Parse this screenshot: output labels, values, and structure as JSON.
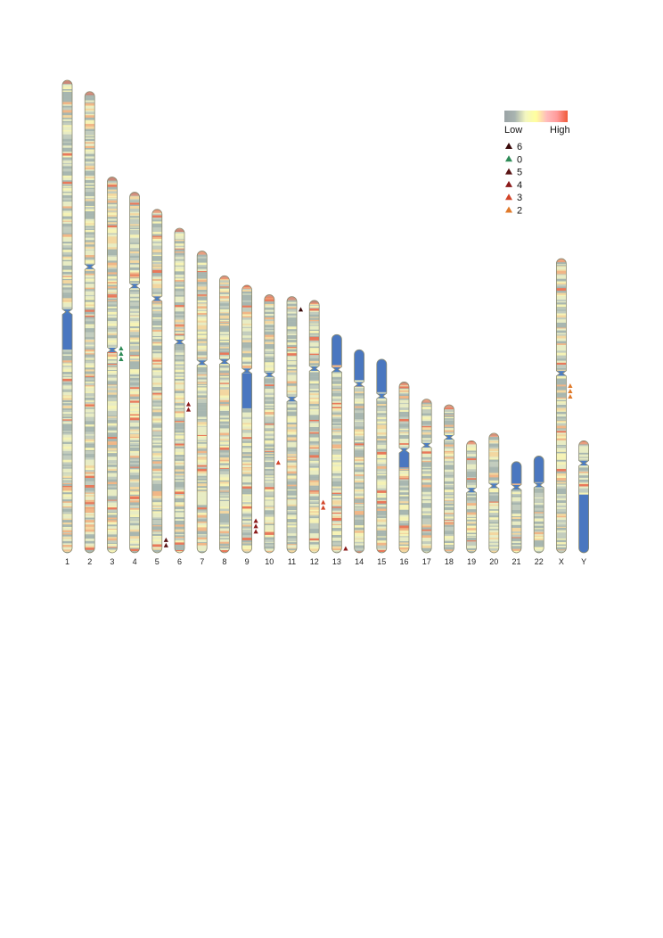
{
  "legend": {
    "low_label": "Low",
    "high_label": "High",
    "gradient_colors": [
      "#9aa3a6",
      "#a9b4b0",
      "#f3f6c0",
      "#ffff9e",
      "#ffbcbc",
      "#ff9a9a",
      "#f05a3a"
    ],
    "marker_entries": [
      {
        "label": "6",
        "color": "#3a0a0a"
      },
      {
        "label": "0",
        "color": "#2e8b57"
      },
      {
        "label": "5",
        "color": "#5a1414"
      },
      {
        "label": "4",
        "color": "#8b1a1a"
      },
      {
        "label": "3",
        "color": "#d2452a"
      },
      {
        "label": "2",
        "color": "#e07a2a"
      }
    ]
  },
  "colors": {
    "outline": "#8a8a70",
    "centromere": "#4a7cc4",
    "heterochromatin": "#4a77c0",
    "low": "#a9b8b2",
    "mid": "#f0f0c4",
    "high_warm": "#f4b080",
    "high_red": "#e8604a"
  },
  "chromosomes": [
    {
      "name": "1",
      "length": 249,
      "centromere": 0.49,
      "hetero": [
        0.49,
        0.57
      ]
    },
    {
      "name": "2",
      "length": 243,
      "centromere": 0.38
    },
    {
      "name": "3",
      "length": 198,
      "centromere": 0.46
    },
    {
      "name": "4",
      "length": 190,
      "centromere": 0.26
    },
    {
      "name": "5",
      "length": 181,
      "centromere": 0.26
    },
    {
      "name": "6",
      "length": 171,
      "centromere": 0.35
    },
    {
      "name": "7",
      "length": 159,
      "centromere": 0.37
    },
    {
      "name": "8",
      "length": 146,
      "centromere": 0.31
    },
    {
      "name": "9",
      "length": 141,
      "centromere": 0.32,
      "hetero": [
        0.33,
        0.46
      ]
    },
    {
      "name": "10",
      "length": 136,
      "centromere": 0.31
    },
    {
      "name": "11",
      "length": 135,
      "centromere": 0.4
    },
    {
      "name": "12",
      "length": 133,
      "centromere": 0.27
    },
    {
      "name": "13",
      "length": 115,
      "centromere": 0.16,
      "hetero": [
        0,
        0.14
      ]
    },
    {
      "name": "14",
      "length": 107,
      "centromere": 0.17,
      "hetero": [
        0,
        0.15
      ]
    },
    {
      "name": "15",
      "length": 102,
      "centromere": 0.19,
      "hetero": [
        0,
        0.17
      ]
    },
    {
      "name": "16",
      "length": 90,
      "centromere": 0.4,
      "hetero": [
        0.41,
        0.5
      ]
    },
    {
      "name": "17",
      "length": 81,
      "centromere": 0.3
    },
    {
      "name": "18",
      "length": 78,
      "centromere": 0.22
    },
    {
      "name": "19",
      "length": 59,
      "centromere": 0.44
    },
    {
      "name": "20",
      "length": 63,
      "centromere": 0.44
    },
    {
      "name": "21",
      "length": 48,
      "centromere": 0.28,
      "hetero": [
        0,
        0.24
      ]
    },
    {
      "name": "22",
      "length": 51,
      "centromere": 0.3,
      "hetero": [
        0,
        0.27
      ]
    },
    {
      "name": "X",
      "length": 155,
      "centromere": 0.39
    },
    {
      "name": "Y",
      "length": 59,
      "centromere": 0.2,
      "hetero": [
        0.48,
        1.0
      ]
    }
  ],
  "markers": [
    {
      "chrom": "3",
      "pos": 0.47,
      "count": 3,
      "legend": "0"
    },
    {
      "chrom": "5",
      "pos": 0.97,
      "count": 2,
      "legend": "5"
    },
    {
      "chrom": "6",
      "pos": 0.55,
      "count": 2,
      "legend": "4"
    },
    {
      "chrom": "9",
      "pos": 0.9,
      "count": 3,
      "legend": "4"
    },
    {
      "chrom": "10",
      "pos": 0.65,
      "count": 1,
      "legend": "3"
    },
    {
      "chrom": "11",
      "pos": 0.05,
      "count": 1,
      "legend": "6"
    },
    {
      "chrom": "12",
      "pos": 0.81,
      "count": 2,
      "legend": "3"
    },
    {
      "chrom": "13",
      "pos": 0.98,
      "count": 1,
      "legend": "4"
    },
    {
      "chrom": "X",
      "pos": 0.45,
      "count": 3,
      "legend": "2"
    }
  ]
}
